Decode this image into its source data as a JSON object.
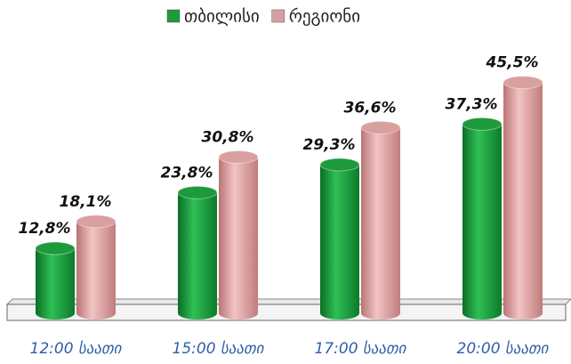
{
  "chart_data": {
    "type": "bar",
    "categories": [
      "12:00 საათი",
      "15:00 საათი",
      "17:00 საათი",
      "20:00 საათი"
    ],
    "series": [
      {
        "name": "თბილისი",
        "color": "#1e9a3c",
        "values": [
          12.8,
          23.8,
          29.3,
          37.3
        ],
        "value_labels": [
          "12,8%",
          "23,8%",
          "29,3%",
          "37,3%"
        ]
      },
      {
        "name": "რეგიონი",
        "color": "#d9a0a0",
        "values": [
          18.1,
          30.8,
          36.6,
          45.5
        ],
        "value_labels": [
          "18,1%",
          "30,8%",
          "36,6%",
          "45,5%"
        ]
      }
    ],
    "legend": "top"
  }
}
